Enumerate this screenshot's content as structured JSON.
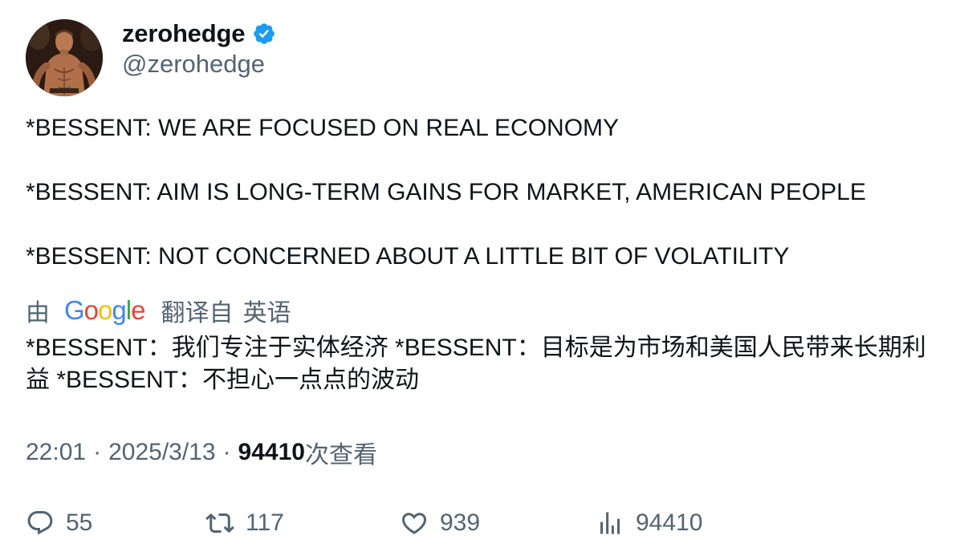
{
  "author": {
    "display_name": "zerohedge",
    "handle": "@zerohedge",
    "verified_icon": "verified-badge-icon",
    "verified_color": "#1d9bf0"
  },
  "tweet": {
    "lines": [
      "*BESSENT: WE ARE FOCUSED ON REAL ECONOMY",
      "*BESSENT: AIM IS LONG-TERM GAINS FOR MARKET, AMERICAN PEOPLE",
      "*BESSENT: NOT CONCERNED ABOUT A LITTLE BIT OF VOLATILITY"
    ]
  },
  "translation": {
    "by": "由",
    "provider": "Google",
    "translated_from": "翻译自",
    "language": "英语",
    "text": "*BESSENT：我们专注于实体经济 *BESSENT：目标是为市场和美国人民带来长期利益 *BESSENT：不担心一点点的波动"
  },
  "meta": {
    "time": "22:01",
    "separator": "·",
    "date": "2025/3/13",
    "views_count": "94410",
    "views_label": "次查看"
  },
  "actions": {
    "replies": "55",
    "retweets": "117",
    "likes": "939",
    "views": "94410"
  },
  "colors": {
    "text_primary": "#0f1419",
    "text_secondary": "#536471",
    "google_blue": "#4285f4",
    "google_red": "#ea4335",
    "google_yellow": "#fbbc05",
    "google_green": "#34a853"
  }
}
